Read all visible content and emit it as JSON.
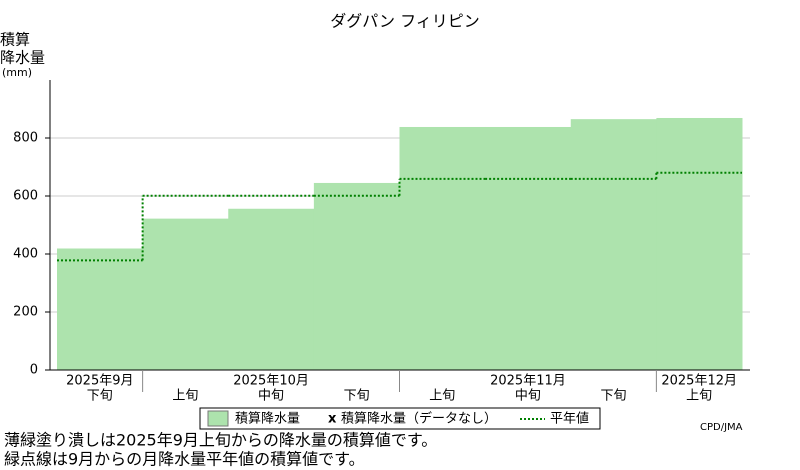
{
  "chart_data": {
    "type": "step-area",
    "title": "ダグパン フィリピン",
    "y_label": [
      "積算",
      "降水量",
      "(mm)"
    ],
    "groups": [
      {
        "label": "2025年9月",
        "categories": [
          "下旬"
        ]
      },
      {
        "label": "2025年10月",
        "categories": [
          "上旬",
          "中旬",
          "下旬"
        ]
      },
      {
        "label": "2025年11月",
        "categories": [
          "上旬",
          "中旬",
          "下旬"
        ]
      },
      {
        "label": "2025年12月",
        "categories": [
          "上旬"
        ]
      }
    ],
    "series": [
      {
        "name": "積算降水量",
        "color": "#ade3ad",
        "values": [
          419,
          522,
          556,
          645,
          838,
          838,
          865,
          869
        ]
      },
      {
        "name": "平年値",
        "color": "#008000",
        "values": [
          378,
          601,
          601,
          601,
          659,
          659,
          659,
          680
        ]
      }
    ],
    "no_data_legend": "積算降水量（データなし）",
    "no_data_marker": "x",
    "ylim": [
      0,
      1000
    ],
    "yticks": [
      0,
      200,
      400,
      600,
      800
    ],
    "grid": true,
    "credit": "CPD/JMA",
    "notes": [
      "薄緑塗り潰しは2025年9月上旬からの降水量の積算値です。",
      "緑点線は9月からの月降水量平年値の積算値です。"
    ]
  }
}
